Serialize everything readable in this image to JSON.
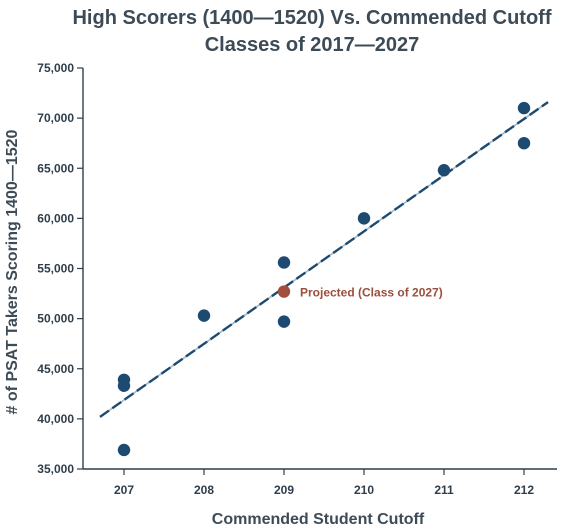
{
  "chart_data": {
    "type": "scatter",
    "title": "High Scorers (1400—1520) Vs. Commended Cutoff",
    "subtitle": "Classes of 2017—2027",
    "xlabel": "Commended Student Cutoff",
    "ylabel": "# of PSAT Takers Scoring 1400—1520",
    "xlim": [
      206.7,
      212.4
    ],
    "ylim": [
      35000,
      75000
    ],
    "x_ticks": [
      207,
      208,
      209,
      210,
      211,
      212
    ],
    "x_tick_labels": [
      "207",
      "208",
      "209",
      "210",
      "211",
      "212"
    ],
    "y_ticks": [
      35000,
      40000,
      45000,
      50000,
      55000,
      60000,
      65000,
      70000,
      75000
    ],
    "y_tick_labels": [
      "35,000",
      "40,000",
      "45,000",
      "50,000",
      "55,000",
      "60,000",
      "65,000",
      "70,000",
      "75,000"
    ],
    "grid": false,
    "series": [
      {
        "color": "#1d4a70",
        "points": [
          {
            "x": 207,
            "y": 43900
          },
          {
            "x": 207,
            "y": 43300
          },
          {
            "x": 207,
            "y": 36900
          },
          {
            "x": 208,
            "y": 50300
          },
          {
            "x": 209,
            "y": 55600
          },
          {
            "x": 209,
            "y": 49700
          },
          {
            "x": 210,
            "y": 60000
          },
          {
            "x": 211,
            "y": 64800
          },
          {
            "x": 212,
            "y": 71000
          },
          {
            "x": 212,
            "y": 67500
          }
        ]
      },
      {
        "name": "Projected (Class of 2027)",
        "color": "#a2503d",
        "points": [
          {
            "x": 209,
            "y": 52700
          }
        ]
      }
    ],
    "trendline": {
      "style": "dashed",
      "color": "#1d4a70",
      "points": [
        {
          "x": 206.7,
          "y": 40200
        },
        {
          "x": 212.3,
          "y": 71600
        }
      ]
    },
    "annotations": [
      {
        "text": "Projected (Class of 2027)",
        "x": 209,
        "y": 52700,
        "color": "#a2503d"
      }
    ]
  }
}
